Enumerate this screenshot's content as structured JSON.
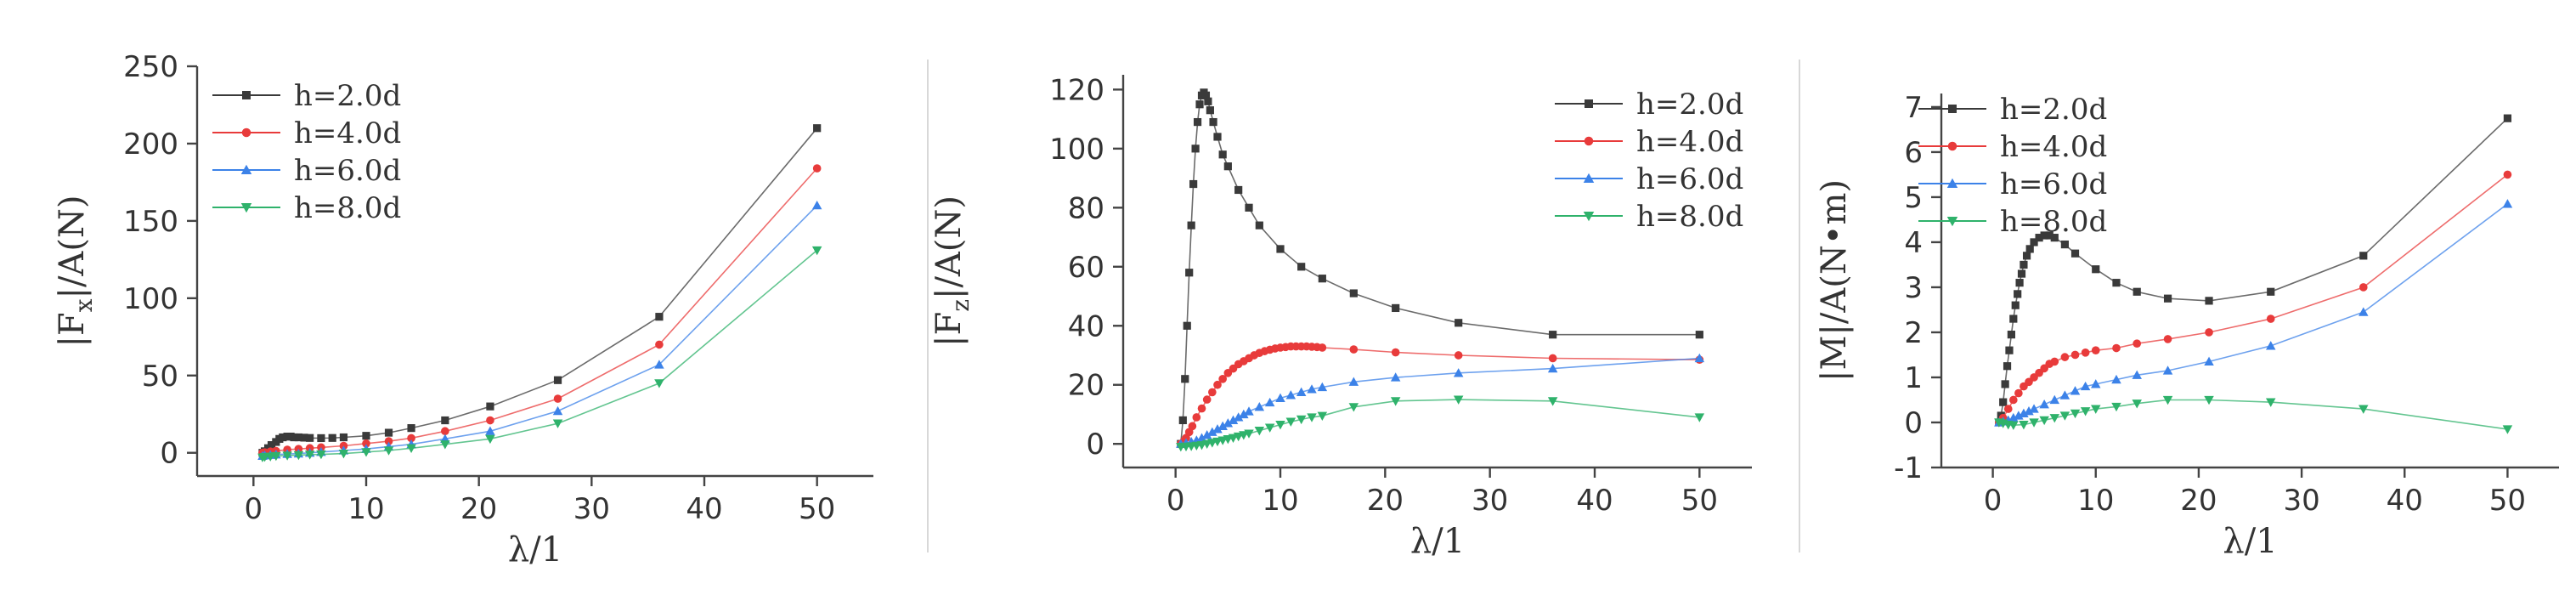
{
  "chart_data": [
    {
      "type": "line",
      "xlabel": "λ/1",
      "ylabel": "|Fx|/A(N)",
      "ylabel_main": "|F",
      "ylabel_sub": "x",
      "ylabel_rest": "|/A(N)",
      "xlim": [
        -5,
        55
      ],
      "ylim": [
        -15,
        250
      ],
      "xticks": [
        0,
        10,
        20,
        30,
        40,
        50
      ],
      "yticks": [
        0,
        50,
        100,
        150,
        200,
        250
      ],
      "legend": "top-left",
      "series": [
        {
          "name": "h=2.0d",
          "color": "#3a3a3a",
          "marker": "square",
          "x": [
            0.8,
            1.0,
            1.3,
            1.6,
            2.0,
            2.3,
            2.6,
            3.0,
            3.3,
            3.6,
            4.0,
            4.5,
            5.0,
            6.0,
            7.0,
            8.0,
            10.0,
            12.0,
            14.0,
            17.0,
            21.0,
            27.0,
            36.0,
            50.0
          ],
          "y": [
            0,
            1,
            3,
            5,
            7,
            9,
            10,
            10.5,
            10.5,
            10,
            10,
            9.8,
            9.6,
            9.5,
            9.6,
            10,
            11,
            13,
            16,
            21,
            30,
            47,
            88,
            210
          ]
        },
        {
          "name": "h=4.0d",
          "color": "#e83b3b",
          "marker": "circle",
          "x": [
            0.8,
            1.0,
            1.5,
            2.0,
            3.0,
            4.0,
            5.0,
            6.0,
            8.0,
            10.0,
            12.0,
            14.0,
            17.0,
            21.0,
            27.0,
            36.0,
            50.0
          ],
          "y": [
            0,
            0.3,
            0.8,
            1.2,
            2,
            2.5,
            3,
            3.5,
            4.5,
            6,
            7.5,
            9.5,
            14,
            21,
            35,
            70,
            184
          ]
        },
        {
          "name": "h=6.0d",
          "color": "#3c82e8",
          "marker": "triangle-up",
          "x": [
            0.8,
            1.0,
            1.5,
            2.0,
            3.0,
            4.0,
            5.0,
            6.0,
            8.0,
            10.0,
            12.0,
            14.0,
            17.0,
            21.0,
            27.0,
            36.0,
            50.0
          ],
          "y": [
            -2,
            -1.7,
            -1.4,
            -1.1,
            -0.8,
            -0.5,
            0,
            0.5,
            1.5,
            2.5,
            4,
            5.5,
            9,
            14,
            27,
            57,
            160
          ]
        },
        {
          "name": "h=8.0d",
          "color": "#2fb26b",
          "marker": "triangle-down",
          "x": [
            0.8,
            1.0,
            1.5,
            2.0,
            3.0,
            4.0,
            5.0,
            6.0,
            8.0,
            10.0,
            12.0,
            14.0,
            17.0,
            21.0,
            27.0,
            36.0,
            50.0
          ],
          "y": [
            -3,
            -2.7,
            -2.4,
            -2.1,
            -1.8,
            -1.5,
            -1.2,
            -1,
            -0.5,
            0.5,
            1.5,
            3,
            5.5,
            9,
            19,
            45,
            131
          ]
        }
      ]
    },
    {
      "type": "line",
      "xlabel": "λ/1",
      "ylabel": "|Fz|/A(N)",
      "ylabel_main": "|F",
      "ylabel_sub": "z",
      "ylabel_rest": "|/A(N)",
      "xlim": [
        -5,
        55
      ],
      "ylim": [
        -8,
        125
      ],
      "xticks": [
        0,
        10,
        20,
        30,
        40,
        50
      ],
      "yticks": [
        0,
        20,
        40,
        60,
        80,
        100,
        120
      ],
      "legend": "top-right",
      "series": [
        {
          "name": "h=2.0d",
          "color": "#3a3a3a",
          "marker": "square",
          "x": [
            0.5,
            0.7,
            0.9,
            1.1,
            1.3,
            1.5,
            1.7,
            1.9,
            2.1,
            2.3,
            2.5,
            2.7,
            2.9,
            3.1,
            3.3,
            3.6,
            4.0,
            4.5,
            5.0,
            6.0,
            7.0,
            8.0,
            10.0,
            12.0,
            14.0,
            17.0,
            21.0,
            27.0,
            36.0,
            50.0
          ],
          "y": [
            0,
            8,
            22,
            40,
            58,
            74,
            88,
            100,
            109,
            115,
            118,
            119,
            118,
            116,
            113,
            109,
            104,
            98,
            94,
            86,
            80,
            74,
            66,
            60,
            56,
            51,
            46,
            41,
            37,
            37
          ]
        },
        {
          "name": "h=4.0d",
          "color": "#e83b3b",
          "marker": "circle",
          "x": [
            0.5,
            0.8,
            1.0,
            1.3,
            1.6,
            2.0,
            2.5,
            3.0,
            3.5,
            4.0,
            4.5,
            5.0,
            5.5,
            6.0,
            6.5,
            7.0,
            7.5,
            8.0,
            8.5,
            9.0,
            9.5,
            10.0,
            10.5,
            11.0,
            11.5,
            12.0,
            12.5,
            13.0,
            13.5,
            14.0,
            17.0,
            21.0,
            27.0,
            36.0,
            50.0
          ],
          "y": [
            0,
            1,
            2,
            4,
            6,
            9,
            12,
            15,
            17.5,
            20,
            22,
            24,
            25.5,
            27,
            28,
            29,
            30,
            30.8,
            31.4,
            31.9,
            32.3,
            32.6,
            32.8,
            33,
            33,
            33,
            33,
            32.9,
            32.8,
            32.6,
            32,
            31,
            30,
            29,
            28.5
          ]
        },
        {
          "name": "h=6.0d",
          "color": "#3c82e8",
          "marker": "triangle-up",
          "x": [
            0.5,
            1.0,
            1.5,
            2.0,
            2.5,
            3.0,
            3.5,
            4.0,
            4.5,
            5.0,
            5.5,
            6.0,
            6.5,
            7.0,
            8.0,
            9.0,
            10.0,
            11.0,
            12.0,
            13.0,
            14.0,
            17.0,
            21.0,
            27.0,
            36.0,
            50.0
          ],
          "y": [
            0,
            0.3,
            0.7,
            1.2,
            2,
            3,
            4,
            5,
            6,
            7,
            8,
            9,
            10,
            11,
            12.5,
            14,
            15.5,
            16.5,
            17.5,
            18.5,
            19.2,
            21,
            22.5,
            24,
            25.5,
            29
          ]
        },
        {
          "name": "h=8.0d",
          "color": "#2fb26b",
          "marker": "triangle-down",
          "x": [
            0.5,
            1.0,
            1.5,
            2.0,
            2.5,
            3.0,
            3.5,
            4.0,
            4.5,
            5.0,
            5.5,
            6.0,
            6.5,
            7.0,
            8.0,
            9.0,
            10.0,
            11.0,
            12.0,
            13.0,
            14.0,
            17.0,
            21.0,
            27.0,
            36.0,
            50.0
          ],
          "y": [
            -1,
            -0.9,
            -0.8,
            -0.6,
            -0.4,
            0,
            0.4,
            0.8,
            1.2,
            1.6,
            2,
            2.5,
            3,
            3.5,
            4.5,
            5.5,
            6.5,
            7.5,
            8.3,
            9,
            9.5,
            12.5,
            14.5,
            15,
            14.5,
            9
          ]
        }
      ]
    },
    {
      "type": "line",
      "xlabel": "λ/1",
      "ylabel": "|M|/A(N•m)",
      "ylabel_main": "|M|/A(N•m)",
      "ylabel_sub": "",
      "ylabel_rest": "",
      "xlim": [
        -5,
        55
      ],
      "ylim": [
        -1,
        7.3
      ],
      "xticks": [
        0,
        10,
        20,
        30,
        40,
        50
      ],
      "yticks": [
        -1,
        0,
        1,
        2,
        3,
        4,
        5,
        6,
        7
      ],
      "legend": "top-left",
      "series": [
        {
          "name": "h=2.0d",
          "color": "#3a3a3a",
          "marker": "square",
          "x": [
            0.6,
            0.8,
            1.0,
            1.2,
            1.4,
            1.6,
            1.8,
            2.0,
            2.2,
            2.4,
            2.6,
            2.8,
            3.0,
            3.3,
            3.6,
            4.0,
            4.5,
            5.0,
            5.5,
            6.0,
            7.0,
            8.0,
            10.0,
            12.0,
            14.0,
            17.0,
            21.0,
            27.0,
            36.0,
            50.0
          ],
          "y": [
            0,
            0.15,
            0.45,
            0.85,
            1.25,
            1.6,
            1.95,
            2.3,
            2.6,
            2.85,
            3.1,
            3.3,
            3.5,
            3.7,
            3.85,
            4.0,
            4.1,
            4.15,
            4.15,
            4.1,
            3.95,
            3.75,
            3.4,
            3.1,
            2.9,
            2.75,
            2.7,
            2.9,
            3.7,
            6.75
          ]
        },
        {
          "name": "h=4.0d",
          "color": "#e83b3b",
          "marker": "circle",
          "x": [
            0.6,
            1.0,
            1.5,
            2.0,
            2.5,
            3.0,
            3.5,
            4.0,
            4.5,
            5.0,
            5.5,
            6.0,
            7.0,
            8.0,
            9.0,
            10.0,
            12.0,
            14.0,
            17.0,
            21.0,
            27.0,
            36.0,
            50.0
          ],
          "y": [
            0,
            0.1,
            0.3,
            0.5,
            0.65,
            0.8,
            0.9,
            1.0,
            1.1,
            1.2,
            1.3,
            1.35,
            1.45,
            1.5,
            1.55,
            1.6,
            1.65,
            1.75,
            1.85,
            2.0,
            2.3,
            3.0,
            5.5
          ]
        },
        {
          "name": "h=6.0d",
          "color": "#3c82e8",
          "marker": "triangle-up",
          "x": [
            0.6,
            1.0,
            1.5,
            2.0,
            2.5,
            3.0,
            3.5,
            4.0,
            5.0,
            6.0,
            7.0,
            8.0,
            9.0,
            10.0,
            12.0,
            14.0,
            17.0,
            21.0,
            27.0,
            36.0,
            50.0
          ],
          "y": [
            0,
            0.02,
            0.05,
            0.1,
            0.15,
            0.2,
            0.25,
            0.3,
            0.4,
            0.5,
            0.6,
            0.7,
            0.8,
            0.85,
            0.95,
            1.05,
            1.15,
            1.35,
            1.7,
            2.45,
            4.85
          ]
        },
        {
          "name": "h=8.0d",
          "color": "#2fb26b",
          "marker": "triangle-down",
          "x": [
            0.6,
            1.0,
            1.5,
            2.0,
            3.0,
            4.0,
            5.0,
            6.0,
            7.0,
            8.0,
            9.0,
            10.0,
            12.0,
            14.0,
            17.0,
            21.0,
            27.0,
            36.0,
            50.0
          ],
          "y": [
            0,
            -0.02,
            -0.05,
            -0.06,
            -0.05,
            0,
            0.05,
            0.1,
            0.15,
            0.2,
            0.25,
            0.3,
            0.35,
            0.42,
            0.5,
            0.5,
            0.45,
            0.3,
            -0.15
          ]
        }
      ]
    }
  ]
}
